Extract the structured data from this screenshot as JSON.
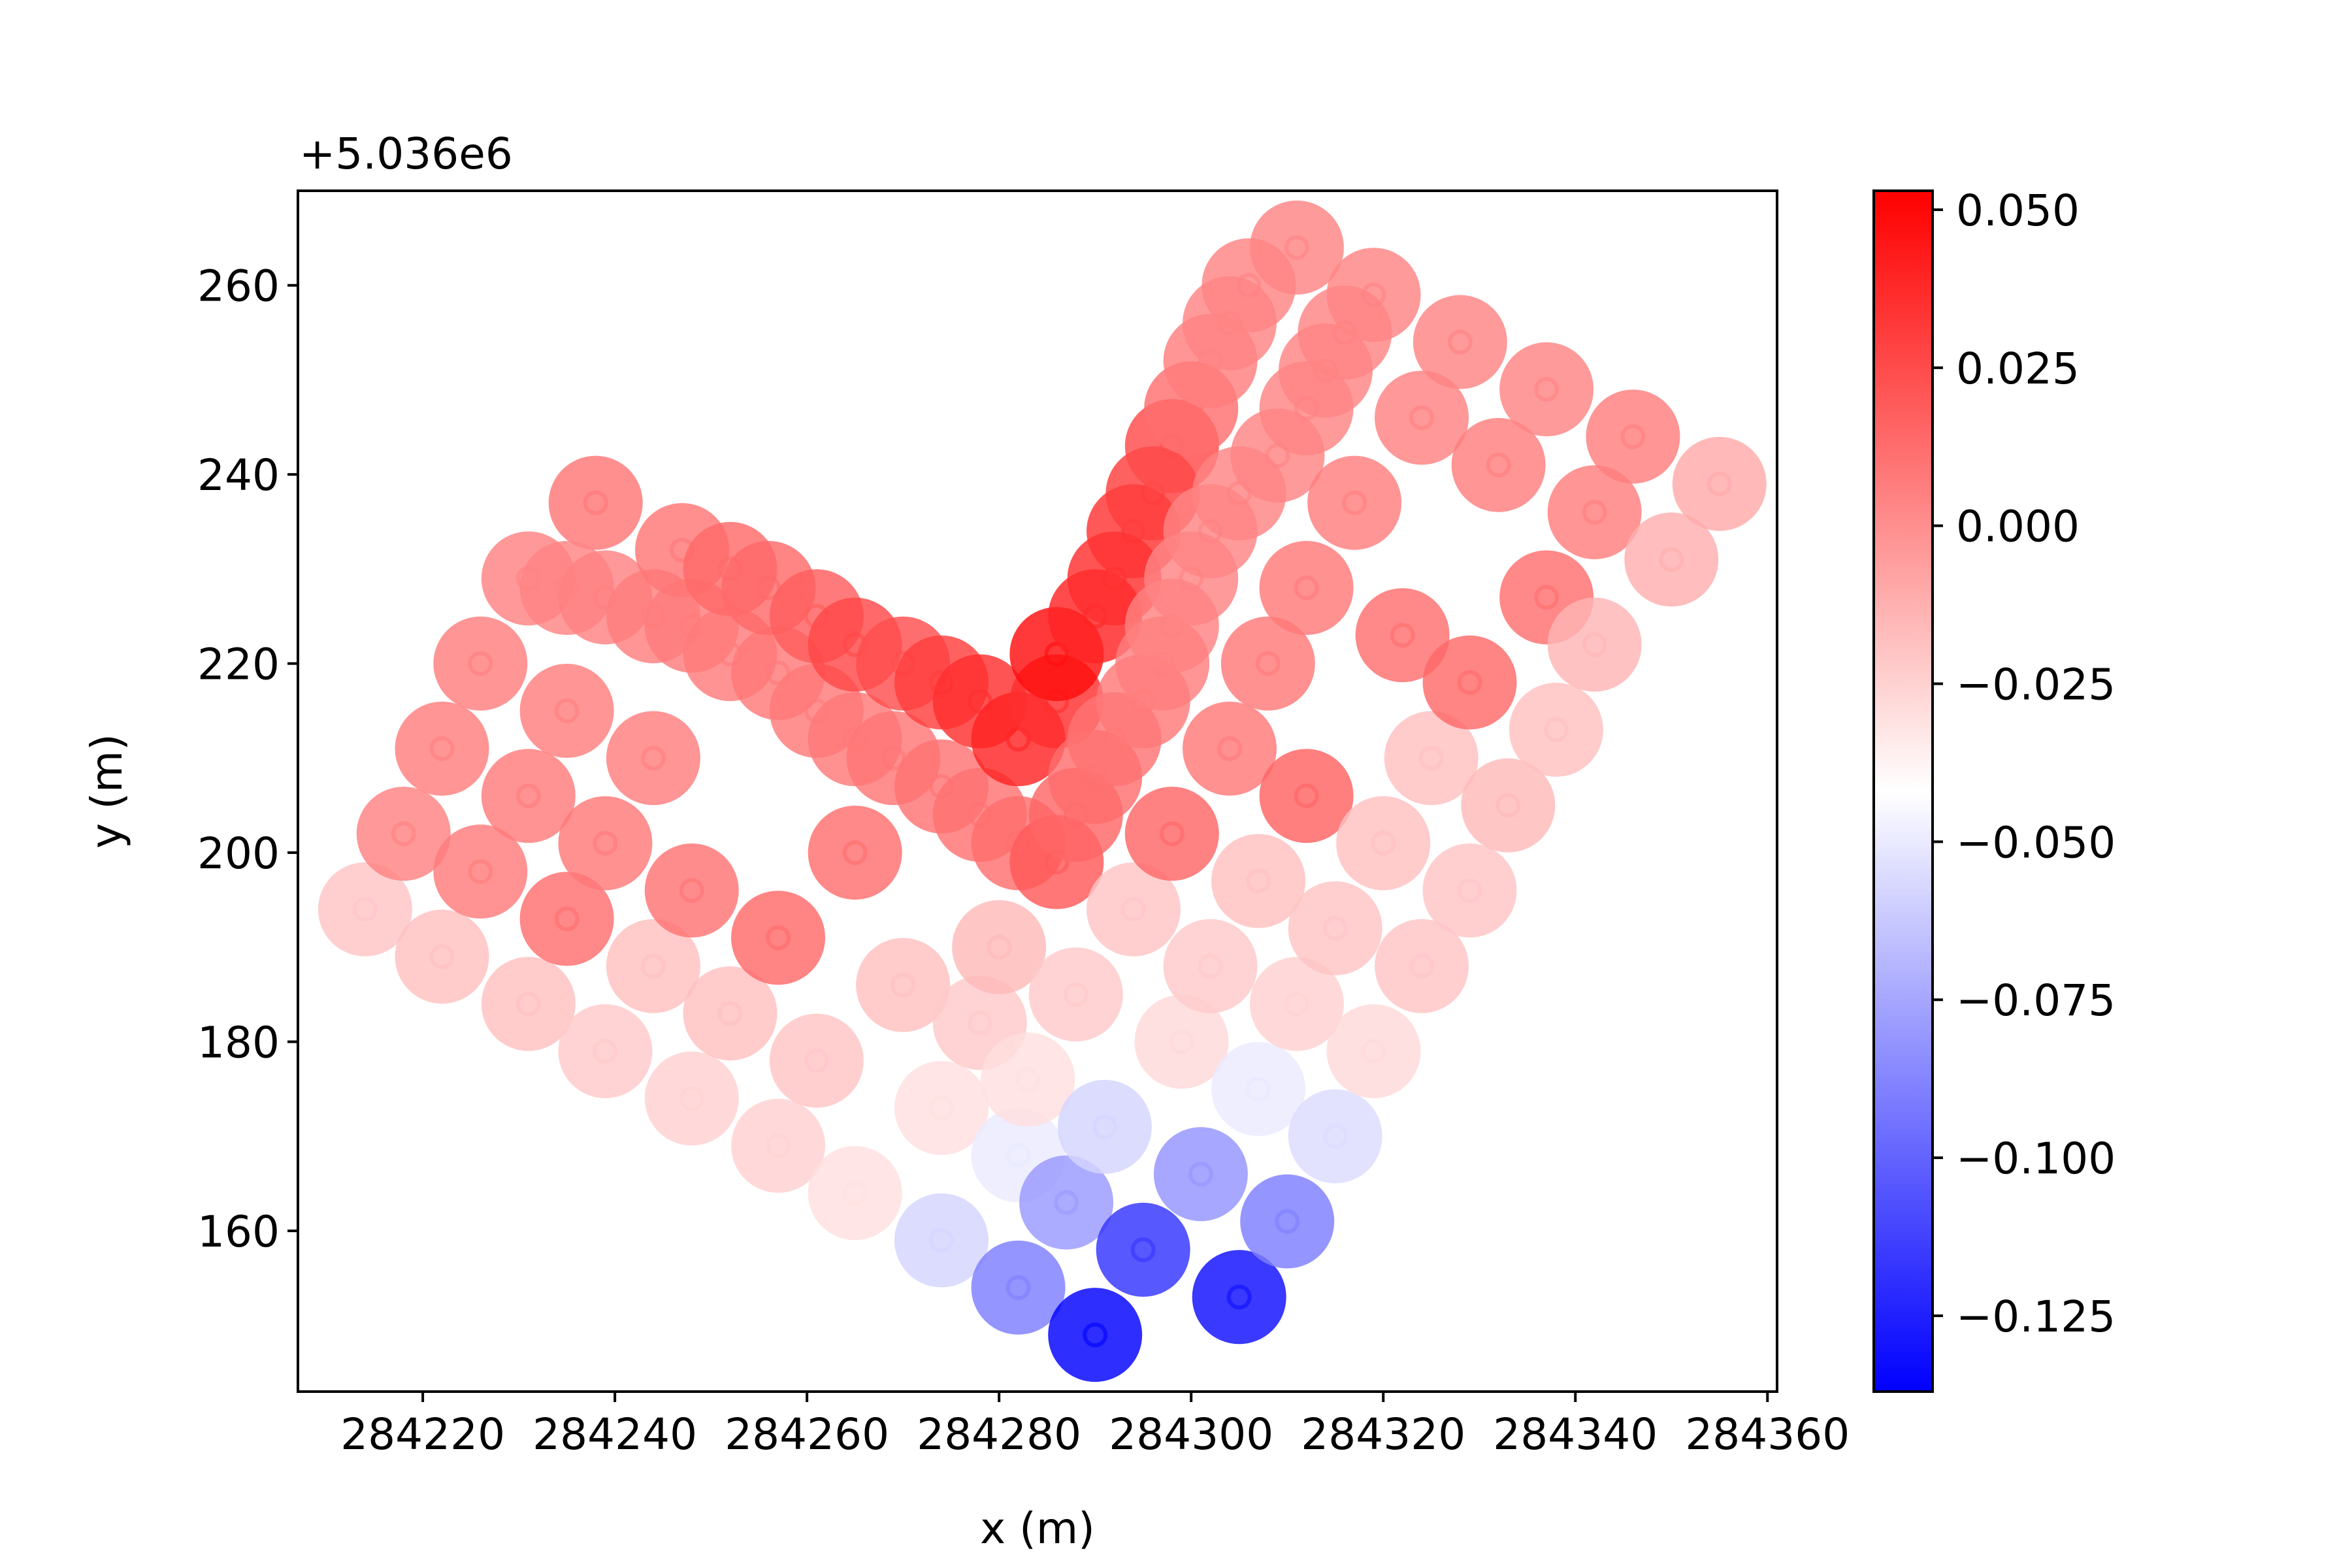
{
  "chart_data": {
    "type": "scatter",
    "title": "",
    "xlabel": "x (m)",
    "ylabel": "y (m)",
    "y_offset_label": "+5.036e6",
    "xlim": [
      284207,
      284361
    ],
    "ylim": [
      143,
      270
    ],
    "x_ticks": [
      284220,
      284240,
      284260,
      284280,
      284300,
      284320,
      284340,
      284360
    ],
    "y_ticks": [
      160,
      180,
      200,
      220,
      240,
      260
    ],
    "grid": false,
    "legend": "none",
    "colormap": "bwr",
    "colorbar": {
      "vmin": -0.137,
      "vmax": 0.053,
      "ticks": [
        0.05,
        0.025,
        0.0,
        -0.025,
        -0.05,
        -0.075,
        -0.1,
        -0.125
      ],
      "tick_labels": [
        "0.050",
        "0.025",
        "0.000",
        "−0.025",
        "−0.050",
        "−0.075",
        "−0.100",
        "−0.125"
      ]
    },
    "points": [
      {
        "x": 284214,
        "y": 194,
        "v": -0.02
      },
      {
        "x": 284218,
        "y": 202,
        "v": 0.005
      },
      {
        "x": 284222,
        "y": 211,
        "v": 0.006
      },
      {
        "x": 284226,
        "y": 220,
        "v": 0.006
      },
      {
        "x": 284231,
        "y": 229,
        "v": 0.005
      },
      {
        "x": 284238,
        "y": 237,
        "v": 0.009
      },
      {
        "x": 284222,
        "y": 189,
        "v": -0.018
      },
      {
        "x": 284226,
        "y": 198,
        "v": 0.007
      },
      {
        "x": 284231,
        "y": 206,
        "v": 0.007
      },
      {
        "x": 284235,
        "y": 215,
        "v": 0.006
      },
      {
        "x": 284235,
        "y": 228,
        "v": 0.004
      },
      {
        "x": 284239,
        "y": 227,
        "v": 0.005
      },
      {
        "x": 284244,
        "y": 225,
        "v": 0.006
      },
      {
        "x": 284231,
        "y": 184,
        "v": -0.018
      },
      {
        "x": 284235,
        "y": 193,
        "v": 0.012
      },
      {
        "x": 284239,
        "y": 201,
        "v": 0.008
      },
      {
        "x": 284244,
        "y": 210,
        "v": 0.006
      },
      {
        "x": 284248,
        "y": 224,
        "v": 0.007
      },
      {
        "x": 284247,
        "y": 232,
        "v": 0.009
      },
      {
        "x": 284239,
        "y": 179,
        "v": -0.022
      },
      {
        "x": 284244,
        "y": 188,
        "v": -0.018
      },
      {
        "x": 284248,
        "y": 196,
        "v": 0.01
      },
      {
        "x": 284252,
        "y": 221,
        "v": 0.007
      },
      {
        "x": 284252,
        "y": 230,
        "v": 0.014
      },
      {
        "x": 284248,
        "y": 174,
        "v": -0.025
      },
      {
        "x": 284252,
        "y": 183,
        "v": -0.018
      },
      {
        "x": 284257,
        "y": 191,
        "v": 0.014
      },
      {
        "x": 284257,
        "y": 219,
        "v": 0.008
      },
      {
        "x": 284256,
        "y": 228,
        "v": 0.014
      },
      {
        "x": 284257,
        "y": 169,
        "v": -0.025
      },
      {
        "x": 284261,
        "y": 178,
        "v": -0.02
      },
      {
        "x": 284265,
        "y": 200,
        "v": 0.012
      },
      {
        "x": 284261,
        "y": 215,
        "v": 0.008
      },
      {
        "x": 284261,
        "y": 225,
        "v": 0.018
      },
      {
        "x": 284265,
        "y": 212,
        "v": 0.008
      },
      {
        "x": 284265,
        "y": 222,
        "v": 0.026
      },
      {
        "x": 284265,
        "y": 164,
        "v": -0.03
      },
      {
        "x": 284270,
        "y": 186,
        "v": -0.018
      },
      {
        "x": 284269,
        "y": 210,
        "v": 0.009
      },
      {
        "x": 284270,
        "y": 220,
        "v": 0.024
      },
      {
        "x": 284274,
        "y": 173,
        "v": -0.03
      },
      {
        "x": 284274,
        "y": 207,
        "v": 0.01
      },
      {
        "x": 284274,
        "y": 218,
        "v": 0.03
      },
      {
        "x": 284274,
        "y": 159,
        "v": -0.058
      },
      {
        "x": 284278,
        "y": 182,
        "v": -0.022
      },
      {
        "x": 284278,
        "y": 204,
        "v": 0.011
      },
      {
        "x": 284278,
        "y": 216,
        "v": 0.036
      },
      {
        "x": 284280,
        "y": 190,
        "v": -0.016
      },
      {
        "x": 284282,
        "y": 168,
        "v": -0.05
      },
      {
        "x": 284282,
        "y": 201,
        "v": 0.012
      },
      {
        "x": 284282,
        "y": 212,
        "v": 0.04
      },
      {
        "x": 284282,
        "y": 154,
        "v": -0.09
      },
      {
        "x": 284283,
        "y": 176,
        "v": -0.03
      },
      {
        "x": 284286,
        "y": 199,
        "v": 0.02
      },
      {
        "x": 284286,
        "y": 216,
        "v": 0.036
      },
      {
        "x": 284286,
        "y": 221,
        "v": 0.048
      },
      {
        "x": 284287,
        "y": 163,
        "v": -0.08
      },
      {
        "x": 284288,
        "y": 185,
        "v": -0.022
      },
      {
        "x": 284288,
        "y": 204,
        "v": 0.015
      },
      {
        "x": 284290,
        "y": 225,
        "v": 0.04
      },
      {
        "x": 284290,
        "y": 149,
        "v": -0.137
      },
      {
        "x": 284291,
        "y": 171,
        "v": -0.058
      },
      {
        "x": 284290,
        "y": 208,
        "v": 0.012
      },
      {
        "x": 284292,
        "y": 229,
        "v": 0.036
      },
      {
        "x": 284292,
        "y": 212,
        "v": 0.01
      },
      {
        "x": 284294,
        "y": 234,
        "v": 0.034
      },
      {
        "x": 284294,
        "y": 194,
        "v": -0.02
      },
      {
        "x": 284295,
        "y": 216,
        "v": 0.008
      },
      {
        "x": 284295,
        "y": 158,
        "v": -0.118
      },
      {
        "x": 284296,
        "y": 238,
        "v": 0.03
      },
      {
        "x": 284297,
        "y": 220,
        "v": 0.006
      },
      {
        "x": 284299,
        "y": 180,
        "v": -0.028
      },
      {
        "x": 284298,
        "y": 224,
        "v": 0.005
      },
      {
        "x": 284298,
        "y": 243,
        "v": 0.025
      },
      {
        "x": 284298,
        "y": 202,
        "v": 0.015
      },
      {
        "x": 284300,
        "y": 229,
        "v": 0.004
      },
      {
        "x": 284300,
        "y": 247,
        "v": 0.012
      },
      {
        "x": 284301,
        "y": 166,
        "v": -0.082
      },
      {
        "x": 284302,
        "y": 234,
        "v": 0.004
      },
      {
        "x": 284302,
        "y": 188,
        "v": -0.022
      },
      {
        "x": 284302,
        "y": 252,
        "v": 0.006
      },
      {
        "x": 284304,
        "y": 211,
        "v": 0.008
      },
      {
        "x": 284304,
        "y": 256,
        "v": 0.004
      },
      {
        "x": 284305,
        "y": 238,
        "v": 0.004
      },
      {
        "x": 284305,
        "y": 153,
        "v": -0.132
      },
      {
        "x": 284306,
        "y": 260,
        "v": 0.004
      },
      {
        "x": 284307,
        "y": 175,
        "v": -0.05
      },
      {
        "x": 284307,
        "y": 197,
        "v": -0.018
      },
      {
        "x": 284308,
        "y": 220,
        "v": 0.008
      },
      {
        "x": 284309,
        "y": 242,
        "v": 0.004
      },
      {
        "x": 284310,
        "y": 161,
        "v": -0.09
      },
      {
        "x": 284311,
        "y": 264,
        "v": 0.004
      },
      {
        "x": 284311,
        "y": 184,
        "v": -0.025
      },
      {
        "x": 284312,
        "y": 206,
        "v": 0.016
      },
      {
        "x": 284312,
        "y": 247,
        "v": 0.004
      },
      {
        "x": 284312,
        "y": 228,
        "v": 0.008
      },
      {
        "x": 284314,
        "y": 251,
        "v": 0.004
      },
      {
        "x": 284315,
        "y": 170,
        "v": -0.055
      },
      {
        "x": 284315,
        "y": 192,
        "v": -0.02
      },
      {
        "x": 284316,
        "y": 255,
        "v": 0.004
      },
      {
        "x": 284317,
        "y": 237,
        "v": 0.006
      },
      {
        "x": 284319,
        "y": 259,
        "v": 0.004
      },
      {
        "x": 284319,
        "y": 179,
        "v": -0.028
      },
      {
        "x": 284320,
        "y": 201,
        "v": -0.018
      },
      {
        "x": 284322,
        "y": 223,
        "v": 0.012
      },
      {
        "x": 284324,
        "y": 246,
        "v": 0.005
      },
      {
        "x": 284324,
        "y": 188,
        "v": -0.02
      },
      {
        "x": 284325,
        "y": 210,
        "v": -0.018
      },
      {
        "x": 284328,
        "y": 254,
        "v": 0.004
      },
      {
        "x": 284329,
        "y": 196,
        "v": -0.02
      },
      {
        "x": 284329,
        "y": 218,
        "v": 0.014
      },
      {
        "x": 284332,
        "y": 241,
        "v": 0.006
      },
      {
        "x": 284333,
        "y": 205,
        "v": -0.016
      },
      {
        "x": 284337,
        "y": 227,
        "v": 0.012
      },
      {
        "x": 284337,
        "y": 249,
        "v": 0.004
      },
      {
        "x": 284338,
        "y": 213,
        "v": -0.018
      },
      {
        "x": 284342,
        "y": 236,
        "v": 0.006
      },
      {
        "x": 284342,
        "y": 222,
        "v": -0.014
      },
      {
        "x": 284346,
        "y": 244,
        "v": 0.006
      },
      {
        "x": 284350,
        "y": 231,
        "v": -0.012
      },
      {
        "x": 284355,
        "y": 239,
        "v": -0.01
      }
    ]
  }
}
